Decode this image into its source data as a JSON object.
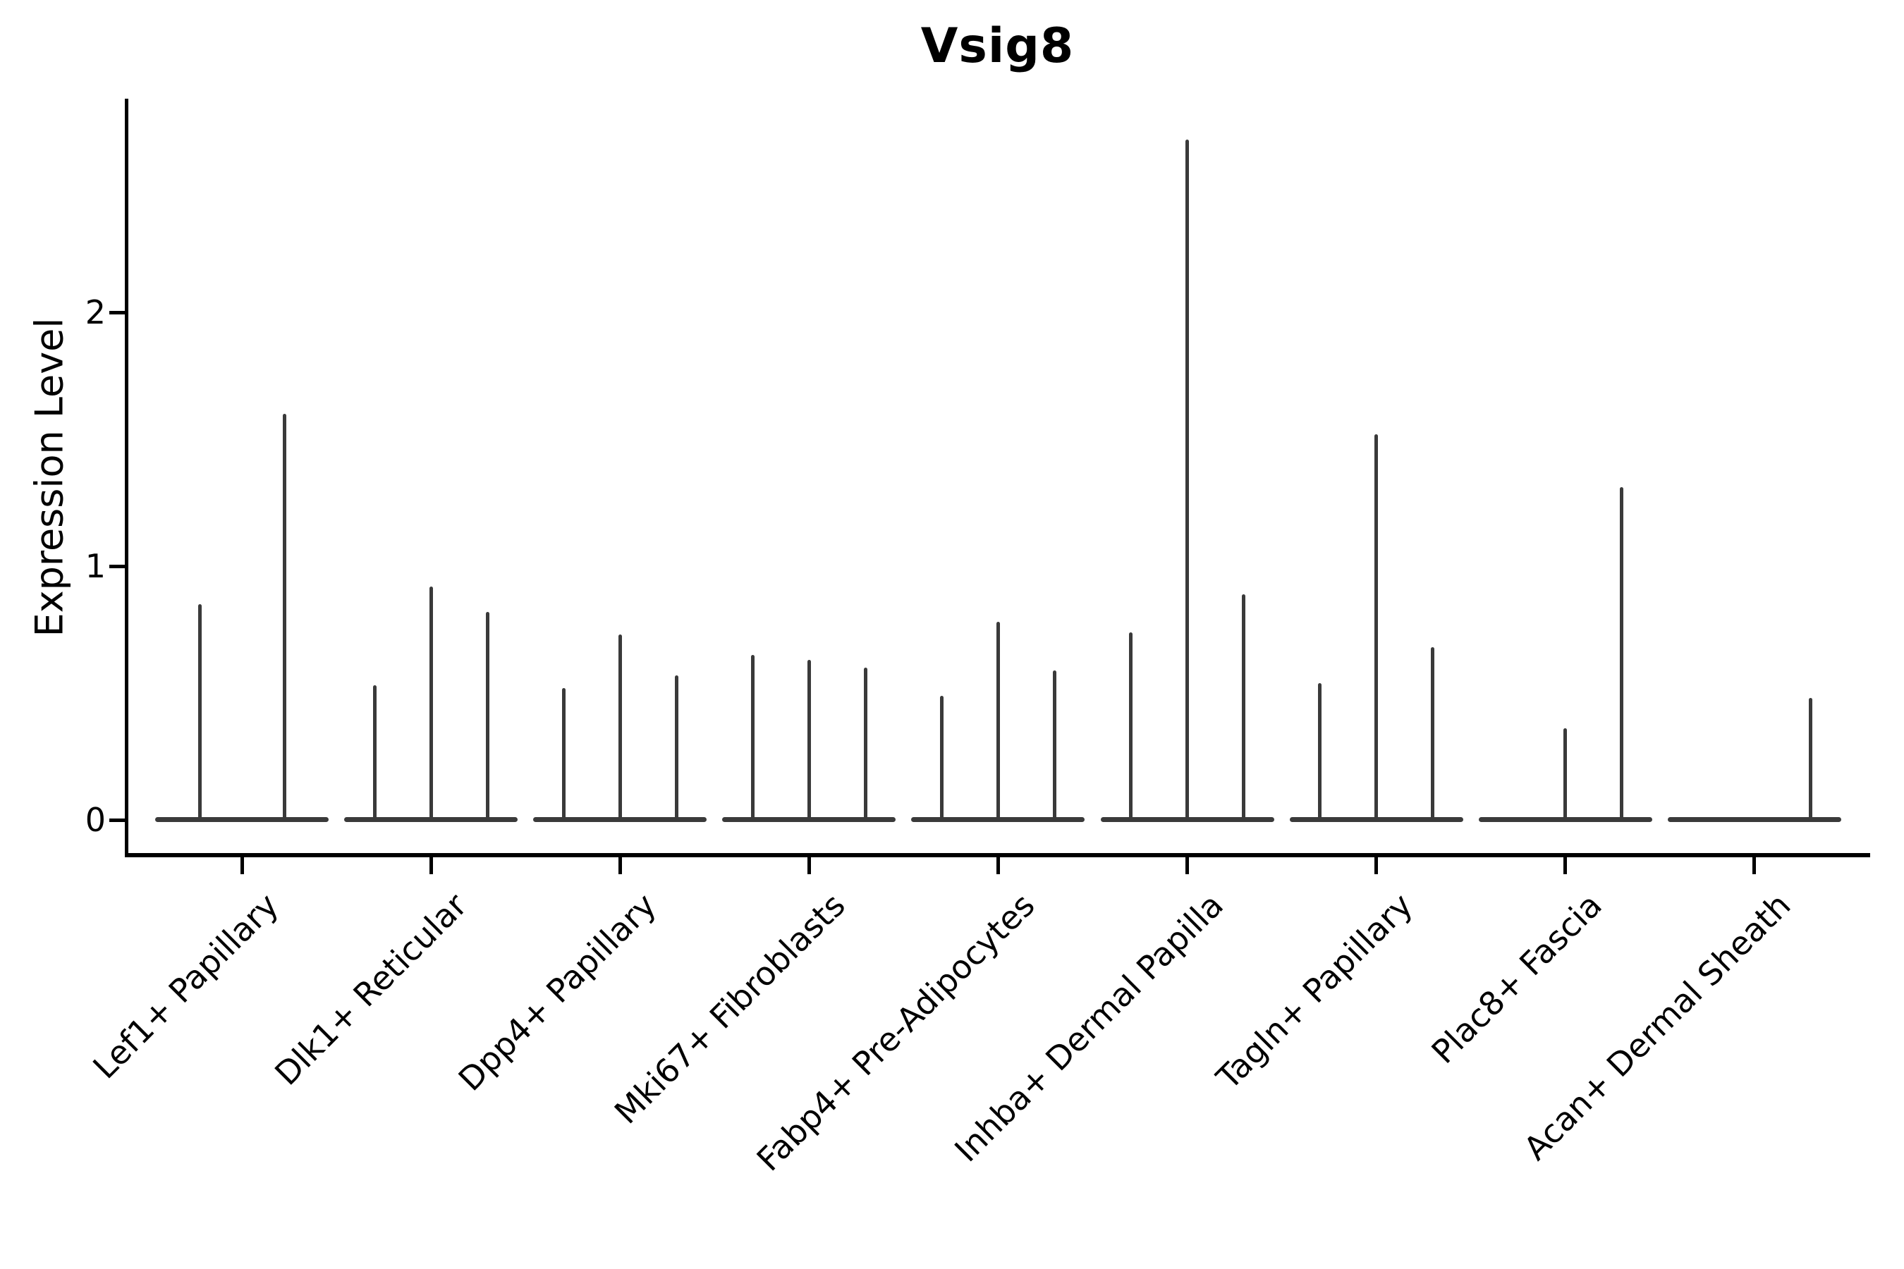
{
  "title": "Vsig8",
  "axes": {
    "y_label": "Expression Level",
    "y_tick_labels": [
      "0",
      "1",
      "2"
    ],
    "x_tick_labels": [
      "Lef1+ Papillary",
      "Dlk1+ Reticular",
      "Dpp4+ Papillary",
      "Mki67+ Fibroblasts",
      "Fabp4+ Pre-Adipocytes",
      "Inhba+ Dermal Papilla",
      "Tagln+ Papillary",
      "Plac8+ Fascia",
      "Acan+ Dermal Sheath"
    ]
  },
  "style": {
    "violin_color": "#3a3a3a",
    "axis_color": "#000000",
    "background": "#ffffff"
  },
  "chart_data": {
    "type": "violin",
    "title": "Vsig8",
    "xlabel": "",
    "ylabel": "Expression Level",
    "ylim": [
      -0.1,
      2.84
    ],
    "y_ticks": [
      0,
      1,
      2
    ],
    "grid": false,
    "legend": false,
    "description": "Violin plot of Vsig8 expression; most cells are at 0 so each violin collapses to a flat line at 0 with a thin spike up to the group's maximum expression. Each category contains 2-3 sub-violins (dodged).",
    "categories": [
      "Lef1+ Papillary",
      "Dlk1+ Reticular",
      "Dpp4+ Papillary",
      "Mki67+ Fibroblasts",
      "Fabp4+ Pre-Adipocytes",
      "Inhba+ Dermal Papilla",
      "Tagln+ Papillary",
      "Plac8+ Fascia",
      "Acan+ Dermal Sheath"
    ],
    "groups": [
      {
        "category": "Lef1+ Papillary",
        "violin_max_values": [
          0.85,
          1.6
        ]
      },
      {
        "category": "Dlk1+ Reticular",
        "violin_max_values": [
          0.53,
          0.92,
          0.82
        ]
      },
      {
        "category": "Dpp4+ Papillary",
        "violin_max_values": [
          0.52,
          0.73,
          0.57
        ]
      },
      {
        "category": "Mki67+ Fibroblasts",
        "violin_max_values": [
          0.65,
          0.63,
          0.6
        ]
      },
      {
        "category": "Fabp4+ Pre-Adipocytes",
        "violin_max_values": [
          0.49,
          0.78,
          0.59
        ]
      },
      {
        "category": "Inhba+ Dermal Papilla",
        "violin_max_values": [
          0.74,
          2.68,
          0.89
        ]
      },
      {
        "category": "Tagln+ Papillary",
        "violin_max_values": [
          0.54,
          1.52,
          0.68
        ]
      },
      {
        "category": "Plac8+ Fascia",
        "violin_max_values": [
          0.0,
          0.36,
          1.31
        ]
      },
      {
        "category": "Acan+ Dermal Sheath",
        "violin_max_values": [
          0.0,
          0.0,
          0.48
        ]
      }
    ]
  }
}
